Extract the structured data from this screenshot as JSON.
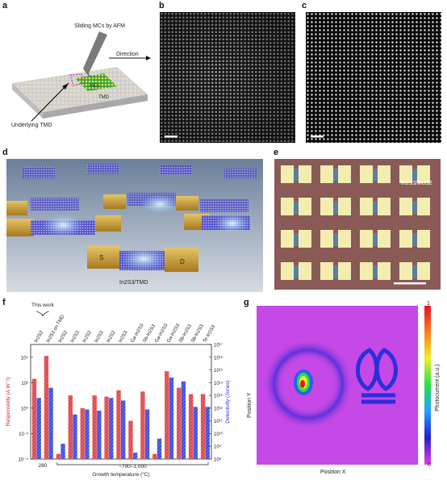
{
  "panels": {
    "a": {
      "label": "a",
      "tip_text": "Sliding MCs by AFM",
      "direction_text": "Direction",
      "mcs_text": "MCs",
      "tmd_text": "TMD",
      "underlying_text": "Underlying TMD"
    },
    "b": {
      "label": "b"
    },
    "c": {
      "label": "c"
    },
    "d": {
      "label": "d",
      "source_text": "S",
      "drain_text": "D",
      "material_text": "In2S3/TMD"
    },
    "e": {
      "label": "e",
      "material_text": "In2S3/MoS2"
    },
    "f": {
      "label": "f",
      "this_work_text": "This work",
      "growth_280": "280",
      "growth_high": "~700–1,000",
      "xlabel": "Growth temperature (°C)"
    },
    "g": {
      "label": "g"
    }
  },
  "chart_data": [
    {
      "type": "bar",
      "panel": "f",
      "categories": [
        "In2S3",
        "In2S3 on TMD",
        "In2S3",
        "In2S3",
        "In2S3",
        "In2S3",
        "In2S3",
        "In2S3",
        "Ga-In2S3",
        "Sb-In2S3",
        "Ga-In2S3",
        "Ga-In2S3",
        "Sb-In2S3",
        "Sb-In2S3",
        "Te-In2S3"
      ],
      "xlabel": "Growth temperature (°C)",
      "ylabel_left": "Responsivity (A W⁻¹)",
      "ylabel_right": "Detectivity (Jones)",
      "ylim_left_exp": [
        -4,
        5
      ],
      "ylim_right_exp": [
        8,
        17
      ],
      "left_ticks": [
        "10⁻⁴",
        "10⁻²",
        "10⁰",
        "10²",
        "10⁴"
      ],
      "right_ticks": [
        "10⁸",
        "10⁹",
        "10¹⁰",
        "10¹¹",
        "10¹²",
        "10¹³",
        "10¹⁴",
        "10¹⁵",
        "10¹⁶",
        "10¹⁷"
      ],
      "series": [
        {
          "name": "Responsivity",
          "axis": "left",
          "color": "#e0474c",
          "values_log10": [
            2.3,
            4.1,
            -3.6,
            1.0,
            0.0,
            1.0,
            0.9,
            1.4,
            -1.0,
            1.3,
            -3.6,
            2.9,
            1.6,
            1.1,
            1.1
          ]
        },
        {
          "name": "Detectivity",
          "axis": "right",
          "color": "#3b4fe0",
          "values_log10": [
            12.8,
            13.6,
            9.2,
            11.5,
            11.9,
            11.8,
            12.8,
            12.6,
            8.5,
            11.9,
            9.6,
            14.4,
            14.1,
            12.1,
            12.1
          ]
        }
      ]
    },
    {
      "type": "heatmap",
      "panel": "g",
      "xlabel": "Position X",
      "ylabel": "Position Y",
      "colorbar_label": "Photocurrent (a.u.)",
      "colorbar_min": "0",
      "colorbar_max": "1",
      "colormap": [
        "#e23ee6",
        "#2b1ec8",
        "#23a1ff",
        "#24e04a",
        "#f0ef2a",
        "#ff7a1a",
        "#e3122a"
      ]
    }
  ]
}
